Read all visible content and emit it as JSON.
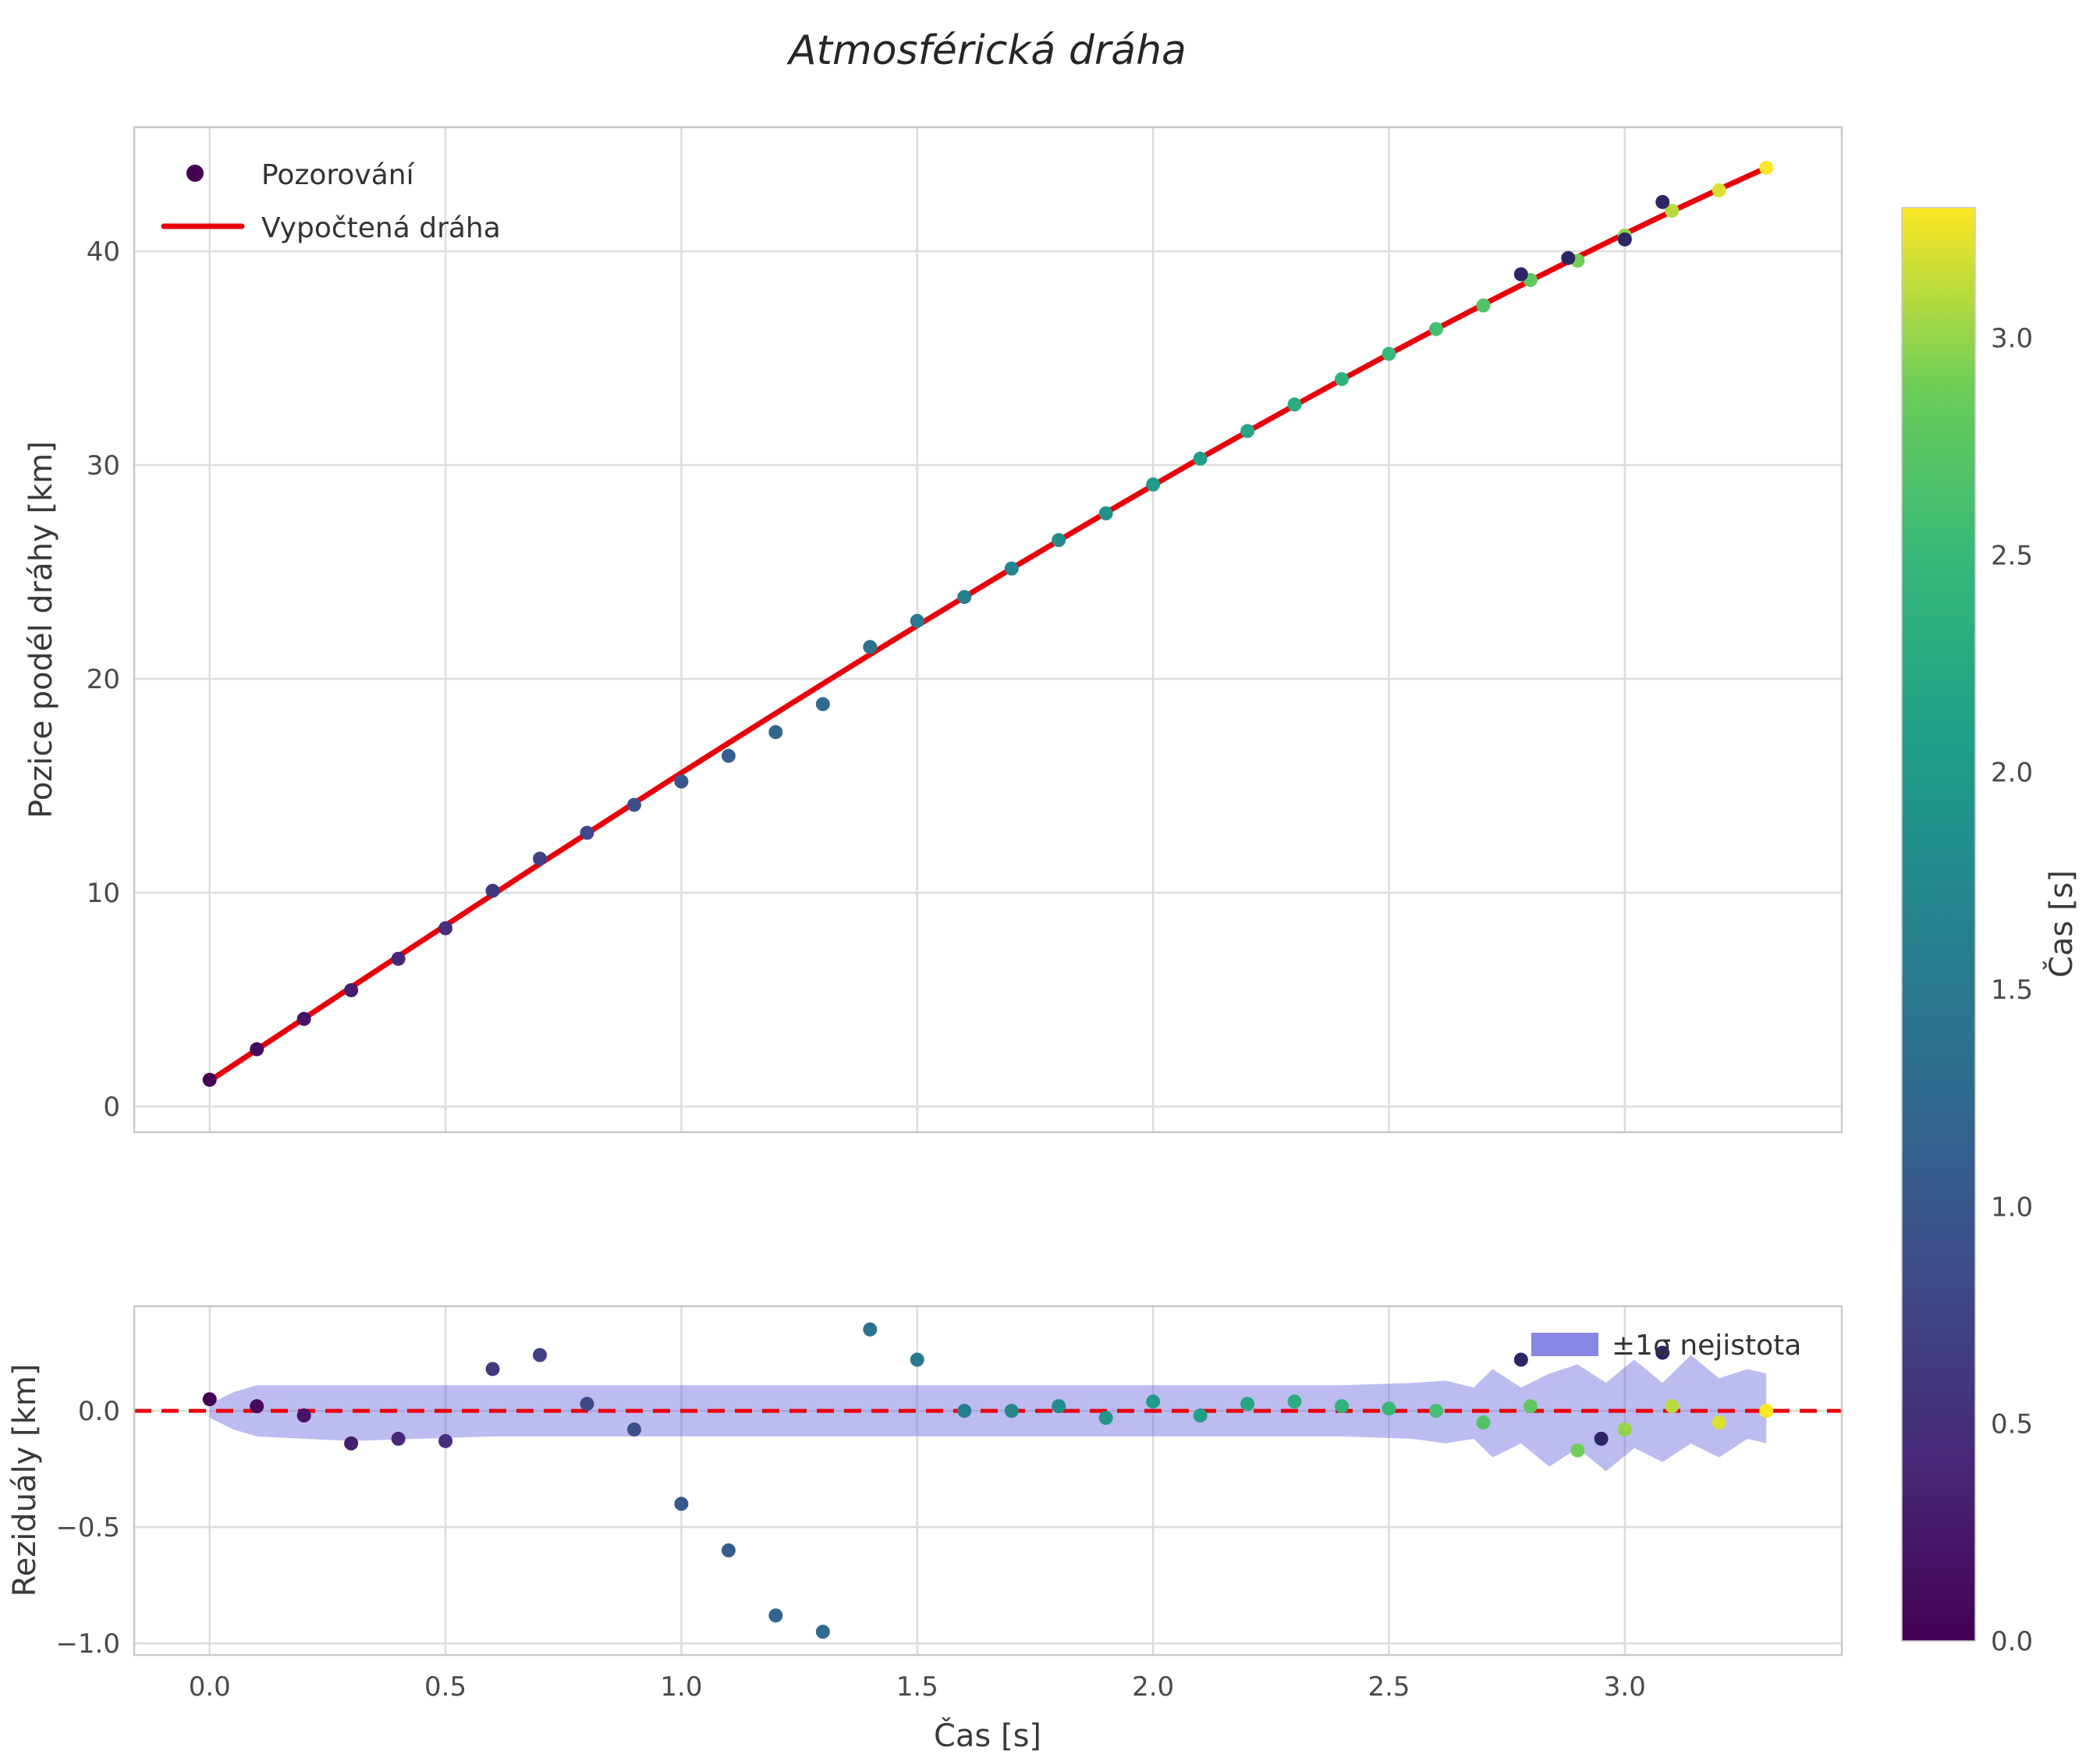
{
  "figure": {
    "title": "Atmosférická dráha",
    "background": "#ffffff",
    "grid_color": "#dcdcdc",
    "spine_color": "#c8c8c8",
    "tick_text_color": "#4a4a4a"
  },
  "chart_data": [
    {
      "type": "scatter",
      "name": "trajectory-panel",
      "title": "Atmosférická dráha",
      "ylabel": "Pozice podél dráhy [km]",
      "xlim": [
        -0.16,
        3.46
      ],
      "ylim": [
        -1.2,
        45.8
      ],
      "yticks": [
        0,
        10,
        20,
        30,
        40
      ],
      "xgrid": [
        0.0,
        0.5,
        1.0,
        1.5,
        2.0,
        2.5,
        3.0
      ],
      "legend": {
        "observations": "Pozorování",
        "fit": "Vypočtená dráha"
      },
      "fit_color": "#e8000b",
      "fit_linewidth": 7,
      "marker_radius": 9,
      "colormap": "viridis",
      "color_by": "t",
      "color_range": [
        0.0,
        3.3
      ],
      "t": [
        0.0,
        0.1,
        0.2,
        0.3,
        0.4,
        0.5,
        0.6,
        0.7,
        0.8,
        0.9,
        1.0,
        1.1,
        1.2,
        1.3,
        1.4,
        1.5,
        1.6,
        1.7,
        1.8,
        1.9,
        2.0,
        2.1,
        2.2,
        2.3,
        2.4,
        2.5,
        2.6,
        2.7,
        2.8,
        2.9,
        3.0,
        3.1,
        3.2,
        3.3
      ],
      "observations": [
        1.25,
        2.68,
        4.1,
        5.44,
        6.91,
        8.34,
        10.09,
        11.59,
        12.8,
        14.11,
        15.2,
        16.4,
        17.51,
        18.82,
        21.49,
        22.71,
        23.83,
        25.16,
        26.49,
        27.74,
        29.09,
        30.3,
        31.59,
        32.83,
        34.02,
        35.2,
        36.36,
        37.46,
        38.65,
        39.56,
        40.73,
        41.89,
        42.85,
        43.9
      ],
      "fit": [
        1.2,
        2.66,
        4.12,
        5.58,
        7.03,
        8.47,
        9.91,
        11.35,
        12.77,
        14.19,
        15.6,
        17.0,
        18.39,
        19.77,
        21.14,
        22.49,
        23.83,
        25.16,
        26.47,
        27.77,
        29.05,
        30.32,
        31.56,
        32.79,
        34.0,
        35.19,
        36.36,
        37.51,
        38.63,
        39.73,
        40.81,
        41.87,
        42.9,
        43.9
      ],
      "extra_dark_points": [
        {
          "t": 2.78,
          "y": 38.92
        },
        {
          "t": 2.88,
          "y": 39.68
        },
        {
          "t": 3.0,
          "y": 40.55
        },
        {
          "t": 3.08,
          "y": 42.3
        }
      ],
      "extra_dark_color": "#2e2566"
    },
    {
      "type": "residual-scatter",
      "name": "residuals-panel",
      "ylabel": "Reziduály [km]",
      "xlabel": "Čas [s]",
      "xlim": [
        -0.16,
        3.46
      ],
      "ylim": [
        -1.05,
        0.45
      ],
      "xticks": [
        0.0,
        0.5,
        1.0,
        1.5,
        2.0,
        2.5,
        3.0
      ],
      "yticks": [
        0.0,
        -0.5,
        -1.0
      ],
      "zero_line_color": "#e8000b",
      "band_label": "±1σ nejistota",
      "band_fill": "rgba(95,95,220,0.42)",
      "band_legend_fill": "rgba(95,95,220,0.75)",
      "marker_radius": 9,
      "colormap": "viridis",
      "color_by": "t",
      "color_range": [
        0.0,
        3.3
      ],
      "t": [
        0.0,
        0.1,
        0.2,
        0.3,
        0.4,
        0.5,
        0.6,
        0.7,
        0.8,
        0.9,
        1.0,
        1.1,
        1.2,
        1.3,
        1.4,
        1.5,
        1.6,
        1.7,
        1.8,
        1.9,
        2.0,
        2.1,
        2.2,
        2.3,
        2.4,
        2.5,
        2.6,
        2.7,
        2.8,
        2.9,
        3.0,
        3.1,
        3.2,
        3.3
      ],
      "residuals": [
        0.05,
        0.02,
        -0.02,
        -0.14,
        -0.12,
        -0.13,
        0.18,
        0.24,
        0.03,
        -0.08,
        -0.4,
        -0.6,
        -0.88,
        -0.95,
        0.35,
        0.22,
        0.0,
        0.0,
        0.02,
        -0.03,
        0.04,
        -0.02,
        0.03,
        0.04,
        0.02,
        0.01,
        0.0,
        -0.05,
        0.02,
        -0.17,
        -0.08,
        0.02,
        -0.05,
        0.0
      ],
      "band": {
        "t": [
          0.0,
          0.05,
          0.1,
          0.3,
          0.6,
          0.9,
          1.2,
          1.5,
          1.8,
          2.1,
          2.4,
          2.55,
          2.62,
          2.68,
          2.72,
          2.78,
          2.84,
          2.9,
          2.96,
          3.02,
          3.08,
          3.14,
          3.2,
          3.26,
          3.3
        ],
        "upper": [
          0.03,
          0.08,
          0.11,
          0.11,
          0.11,
          0.11,
          0.11,
          0.11,
          0.11,
          0.11,
          0.11,
          0.12,
          0.13,
          0.1,
          0.18,
          0.1,
          0.16,
          0.2,
          0.12,
          0.22,
          0.12,
          0.24,
          0.14,
          0.18,
          0.16
        ],
        "lower": [
          -0.03,
          -0.08,
          -0.11,
          -0.13,
          -0.11,
          -0.11,
          -0.11,
          -0.11,
          -0.11,
          -0.11,
          -0.11,
          -0.12,
          -0.14,
          -0.12,
          -0.2,
          -0.14,
          -0.24,
          -0.16,
          -0.26,
          -0.16,
          -0.22,
          -0.14,
          -0.2,
          -0.12,
          -0.14
        ]
      },
      "extra_dark_points": [
        {
          "t": 2.78,
          "y": 0.22
        },
        {
          "t": 2.95,
          "y": -0.12
        },
        {
          "t": 3.08,
          "y": 0.25
        }
      ],
      "extra_dark_color": "#2e2566"
    }
  ],
  "colorbar": {
    "label": "Čas [s]",
    "min": 0.0,
    "max": 3.3,
    "ticks": [
      0.0,
      0.5,
      1.0,
      1.5,
      2.0,
      2.5,
      3.0
    ],
    "colormap": "viridis"
  }
}
